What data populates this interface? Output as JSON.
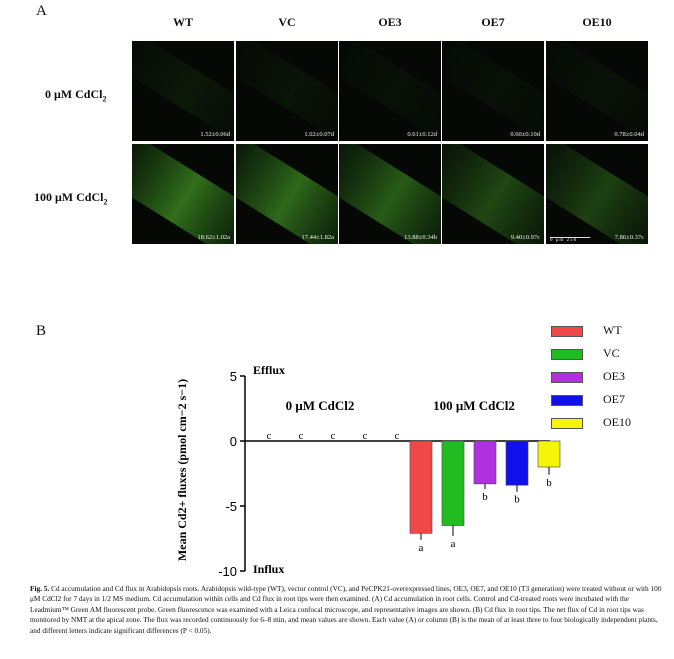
{
  "panel_a": {
    "label": "A",
    "columns": [
      "WT",
      "VC",
      "OE3",
      "OE7",
      "OE10"
    ],
    "rows": [
      {
        "label": "0 μM CdCl",
        "sub": "2",
        "values": [
          "1.52±0.06d",
          "1.02±0.07d",
          "0.61±0.12d",
          "0.60±0.10d",
          "0.78±0.04d"
        ],
        "glow": [
          0.1,
          0.07,
          0.05,
          0.05,
          0.06
        ]
      },
      {
        "label": "100 μM CdCl",
        "sub": "2",
        "values": [
          "18.62±1.02a",
          "17.44±1.82a",
          "13.88±0.34b",
          "9.40±0.97c",
          "7.86±0.37c"
        ],
        "glow": [
          0.62,
          0.58,
          0.5,
          0.38,
          0.34
        ]
      }
    ],
    "scale_bar": {
      "left": "0",
      "mid": "μm",
      "right": "250"
    }
  },
  "panel_b": {
    "label": "B",
    "legend": [
      {
        "name": "WT",
        "color": "#f04848"
      },
      {
        "name": "VC",
        "color": "#22bb22"
      },
      {
        "name": "OE3",
        "color": "#b030e0"
      },
      {
        "name": "OE7",
        "color": "#1010e8"
      },
      {
        "name": "OE10",
        "color": "#f5f50a"
      }
    ]
  },
  "chart_data": {
    "type": "bar",
    "ylabel": "Mean Cd2+ fluxes (pmol cm−2 s−1)",
    "ylim": [
      -10,
      5
    ],
    "yticks": [
      5,
      0,
      -5,
      -10
    ],
    "top_annotation": "Efflux",
    "bottom_annotation": "Influx",
    "groups": [
      "0 μM CdCl2",
      "100 μM CdCl2"
    ],
    "series": [
      {
        "name": "WT",
        "values": [
          0,
          -7.1
        ],
        "letters": [
          "c",
          "a"
        ]
      },
      {
        "name": "VC",
        "values": [
          0,
          -6.5
        ],
        "letters": [
          "c",
          "a"
        ]
      },
      {
        "name": "OE3",
        "values": [
          0,
          -3.3
        ],
        "letters": [
          "c",
          "b"
        ]
      },
      {
        "name": "OE7",
        "values": [
          0,
          -3.4
        ],
        "letters": [
          "c",
          "b"
        ]
      },
      {
        "name": "OE10",
        "values": [
          0,
          -2.0
        ],
        "letters": [
          "c",
          "b"
        ]
      }
    ],
    "errors": [
      [
        0,
        0.5
      ],
      [
        0,
        0.8
      ],
      [
        0,
        0.4
      ],
      [
        0,
        0.5
      ],
      [
        0,
        0.6
      ]
    ]
  },
  "caption": {
    "fig": "Fig. 5.",
    "text": " Cd accumulation and Cd flux in Arabidopsis roots. Arabidopsis wild-type (WT), vector control (VC), and PeCPK21-overexpressed lines, OE3, OE7, and OE10 (T3 generation) were treated without or with 100 μM CdCl2 for 7 days in 1/2 MS medium. Cd accumulation within cells and Cd flux in root tips were then examined. (A) Cd accumulation in root cells. Control and Cd-treated roots were incubated with the Leadmium™ Green AM fluorescent probe. Green fluorescence was examined with a Leica confocal microscope, and representative images are shown. (B) Cd flux in root tips. The net flux of Cd in root tips was monitored by NMT at the apical zone. The flux was recorded continuously for 6–8 min, and mean values are shown. Each value (A) or column (B) is the mean of at least three to four biologically independent plants, and different letters indicate significant differences (P < 0.05)."
  }
}
